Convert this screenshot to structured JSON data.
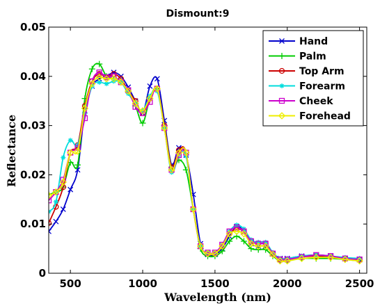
{
  "chart_data": {
    "type": "line",
    "title": "Dismount:9",
    "xlabel": "Wavelength (nm)",
    "ylabel": "Reflectance",
    "xlim": [
      350,
      2550
    ],
    "ylim": [
      0,
      0.05
    ],
    "xticks": [
      500,
      1000,
      1500,
      2000,
      2500
    ],
    "xtick_labels": [
      "500",
      "1000",
      "1500",
      "2000",
      "2500"
    ],
    "yticks": [
      0,
      0.01,
      0.02,
      0.03,
      0.04,
      0.05
    ],
    "ytick_labels": [
      "0",
      "0.01",
      "0.02",
      "0.03",
      "0.04",
      "0.05"
    ],
    "grid": false,
    "legend_position": "top-right",
    "series": [
      {
        "name": "Hand",
        "color": "#0000cc",
        "marker": "x",
        "x": [
          350,
          400,
          450,
          500,
          550,
          600,
          650,
          700,
          750,
          800,
          850,
          900,
          950,
          1000,
          1050,
          1100,
          1150,
          1200,
          1250,
          1300,
          1350,
          1400,
          1450,
          1500,
          1550,
          1600,
          1650,
          1700,
          1750,
          1800,
          1850,
          1900,
          1950,
          2000,
          2100,
          2200,
          2300,
          2400,
          2500
        ],
        "y": [
          0.0085,
          0.0105,
          0.013,
          0.017,
          0.021,
          0.033,
          0.038,
          0.0395,
          0.04,
          0.0408,
          0.04,
          0.0378,
          0.035,
          0.0325,
          0.038,
          0.0395,
          0.031,
          0.022,
          0.0255,
          0.024,
          0.016,
          0.006,
          0.0038,
          0.0038,
          0.005,
          0.0075,
          0.0095,
          0.0085,
          0.006,
          0.0055,
          0.0055,
          0.004,
          0.003,
          0.003,
          0.0035,
          0.0037,
          0.0035,
          0.003,
          0.0028
        ]
      },
      {
        "name": "Palm",
        "color": "#00cc00",
        "marker": "+",
        "x": [
          350,
          400,
          450,
          500,
          550,
          600,
          650,
          700,
          750,
          800,
          850,
          900,
          950,
          1000,
          1050,
          1100,
          1150,
          1200,
          1250,
          1300,
          1350,
          1400,
          1450,
          1500,
          1550,
          1600,
          1650,
          1700,
          1750,
          1800,
          1850,
          1900,
          1950,
          2000,
          2100,
          2200,
          2300,
          2400,
          2500
        ],
        "y": [
          0.016,
          0.0165,
          0.0175,
          0.0225,
          0.022,
          0.0355,
          0.0415,
          0.0425,
          0.04,
          0.0395,
          0.0388,
          0.0368,
          0.034,
          0.0305,
          0.0355,
          0.0375,
          0.03,
          0.0215,
          0.023,
          0.021,
          0.013,
          0.005,
          0.0035,
          0.0035,
          0.0045,
          0.0065,
          0.0075,
          0.0065,
          0.005,
          0.0048,
          0.0048,
          0.0035,
          0.0025,
          0.0025,
          0.003,
          0.003,
          0.003,
          0.0028,
          0.0025
        ]
      },
      {
        "name": "Top Arm",
        "color": "#cc0000",
        "marker": "o",
        "x": [
          350,
          400,
          450,
          500,
          550,
          600,
          650,
          700,
          750,
          800,
          850,
          900,
          950,
          1000,
          1050,
          1100,
          1150,
          1200,
          1250,
          1300,
          1350,
          1400,
          1450,
          1500,
          1550,
          1600,
          1650,
          1700,
          1750,
          1800,
          1850,
          1900,
          1950,
          2000,
          2100,
          2200,
          2300,
          2400,
          2500
        ],
        "y": [
          0.0102,
          0.0135,
          0.0175,
          0.0245,
          0.026,
          0.034,
          0.039,
          0.0405,
          0.0398,
          0.0405,
          0.0395,
          0.037,
          0.035,
          0.0325,
          0.0355,
          0.0375,
          0.03,
          0.0215,
          0.025,
          0.0245,
          0.013,
          0.0055,
          0.004,
          0.004,
          0.0055,
          0.008,
          0.009,
          0.0085,
          0.0065,
          0.006,
          0.006,
          0.004,
          0.0028,
          0.0028,
          0.0033,
          0.0035,
          0.0033,
          0.003,
          0.0028
        ]
      },
      {
        "name": "Forearm",
        "color": "#00dddd",
        "marker": "*",
        "x": [
          350,
          400,
          450,
          500,
          550,
          600,
          650,
          700,
          750,
          800,
          850,
          900,
          950,
          1000,
          1050,
          1100,
          1150,
          1200,
          1250,
          1300,
          1350,
          1400,
          1450,
          1500,
          1550,
          1600,
          1650,
          1700,
          1750,
          1800,
          1850,
          1900,
          1950,
          2000,
          2100,
          2200,
          2300,
          2400,
          2500
        ],
        "y": [
          0.0125,
          0.0145,
          0.0235,
          0.027,
          0.026,
          0.0325,
          0.038,
          0.0388,
          0.0385,
          0.039,
          0.0388,
          0.0365,
          0.0345,
          0.033,
          0.036,
          0.037,
          0.0295,
          0.0205,
          0.024,
          0.0238,
          0.013,
          0.0055,
          0.0042,
          0.0042,
          0.0058,
          0.0085,
          0.0098,
          0.009,
          0.0068,
          0.0063,
          0.0063,
          0.0042,
          0.003,
          0.003,
          0.0035,
          0.0037,
          0.0035,
          0.0032,
          0.003
        ]
      },
      {
        "name": "Cheek",
        "color": "#cc00cc",
        "marker": "square",
        "x": [
          350,
          400,
          450,
          500,
          550,
          600,
          650,
          700,
          750,
          800,
          850,
          900,
          950,
          1000,
          1050,
          1100,
          1150,
          1200,
          1250,
          1300,
          1350,
          1400,
          1450,
          1500,
          1550,
          1600,
          1650,
          1700,
          1750,
          1800,
          1850,
          1900,
          1950,
          2000,
          2100,
          2200,
          2300,
          2400,
          2500
        ],
        "y": [
          0.0148,
          0.0165,
          0.019,
          0.0245,
          0.0255,
          0.0315,
          0.039,
          0.0408,
          0.0398,
          0.04,
          0.0388,
          0.0372,
          0.0338,
          0.0325,
          0.0348,
          0.0375,
          0.0295,
          0.021,
          0.024,
          0.0245,
          0.013,
          0.0055,
          0.0042,
          0.0042,
          0.0058,
          0.0085,
          0.0093,
          0.0085,
          0.0065,
          0.006,
          0.006,
          0.004,
          0.0028,
          0.0028,
          0.0033,
          0.0037,
          0.0035,
          0.003,
          0.0028
        ]
      },
      {
        "name": "Forehead",
        "color": "#eeee00",
        "marker": "diamond",
        "x": [
          350,
          400,
          450,
          500,
          550,
          600,
          650,
          700,
          750,
          800,
          850,
          900,
          950,
          1000,
          1050,
          1100,
          1150,
          1200,
          1250,
          1300,
          1350,
          1400,
          1450,
          1500,
          1550,
          1600,
          1650,
          1700,
          1750,
          1800,
          1850,
          1900,
          1950,
          2000,
          2100,
          2200,
          2300,
          2400,
          2500
        ],
        "y": [
          0.0158,
          0.0165,
          0.0185,
          0.0245,
          0.0248,
          0.0335,
          0.0385,
          0.0398,
          0.0395,
          0.0395,
          0.0388,
          0.037,
          0.0345,
          0.033,
          0.0355,
          0.0375,
          0.0295,
          0.021,
          0.0245,
          0.0245,
          0.013,
          0.0055,
          0.004,
          0.004,
          0.0055,
          0.008,
          0.0085,
          0.008,
          0.006,
          0.0055,
          0.0055,
          0.0038,
          0.0025,
          0.0025,
          0.003,
          0.0032,
          0.0032,
          0.0028,
          0.0025
        ]
      }
    ]
  }
}
